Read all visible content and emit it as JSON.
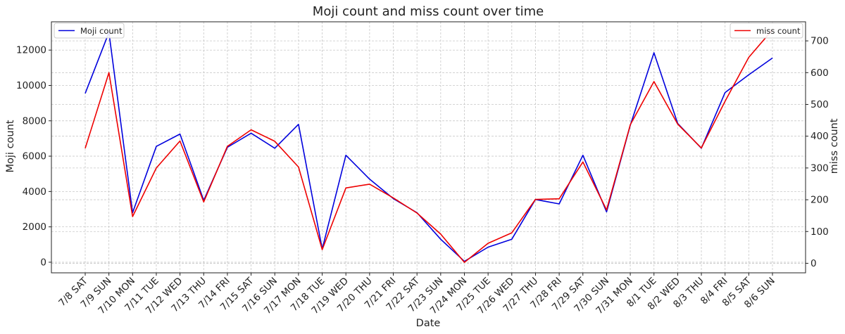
{
  "chart_data": {
    "type": "line",
    "title": "Moji count and miss count over time",
    "xlabel": "Date",
    "ylabel_left": "Moji count",
    "ylabel_right": "miss count",
    "categories": [
      "7/8 SAT",
      "7/9 SUN",
      "7/10 MON",
      "7/11 TUE",
      "7/12 WED",
      "7/13 THU",
      "7/14 FRI",
      "7/15 SAT",
      "7/16 SUN",
      "7/17 MON",
      "7/18 TUE",
      "7/19 WED",
      "7/20 THU",
      "7/21 FRI",
      "7/22 SAT",
      "7/23 SUN",
      "7/24 MON",
      "7/25 TUE",
      "7/26 WED",
      "7/27 THU",
      "7/28 FRI",
      "7/29 SAT",
      "7/30 SUN",
      "7/31 MON",
      "8/1 TUE",
      "8/2 WED",
      "8/3 THU",
      "8/4 FRI",
      "8/5 SAT",
      "8/6 SUN"
    ],
    "series": [
      {
        "name": "Moji count",
        "axis": "left",
        "color": "#0000dd",
        "values": [
          9550,
          13000,
          2800,
          6550,
          7250,
          3500,
          6500,
          7300,
          6450,
          7800,
          750,
          6050,
          4700,
          3600,
          2800,
          1300,
          50,
          850,
          1300,
          3550,
          3300,
          6050,
          2850,
          7750,
          11850,
          7850,
          6450,
          9600,
          10600,
          11550
        ]
      },
      {
        "name": "miss count",
        "axis": "right",
        "color": "#ee0000",
        "values": [
          362,
          600,
          147,
          300,
          385,
          193,
          368,
          420,
          384,
          303,
          43,
          237,
          249,
          206,
          158,
          92,
          3,
          63,
          96,
          201,
          203,
          319,
          168,
          436,
          572,
          438,
          363,
          510,
          648,
          735
        ]
      }
    ],
    "ylim_left": [
      -600,
      13600
    ],
    "ylim_right": [
      -30,
      760
    ],
    "yticks_left": [
      "0",
      "2000",
      "4000",
      "6000",
      "8000",
      "10000",
      "12000"
    ],
    "yticks_right": [
      "0",
      "100",
      "200",
      "300",
      "400",
      "500",
      "600",
      "700"
    ],
    "grid": true,
    "legend_left": "top-left",
    "legend_right": "top-right"
  }
}
